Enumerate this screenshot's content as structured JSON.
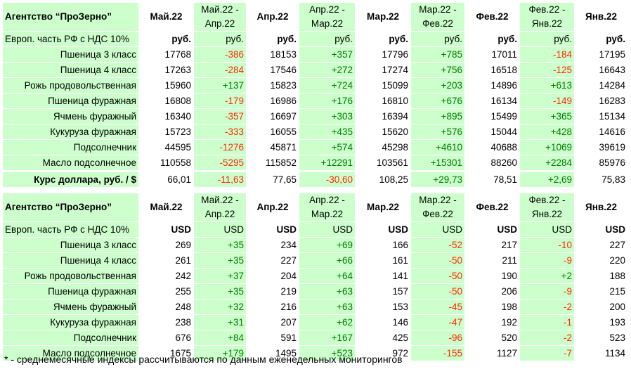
{
  "rub_table": {
    "title": "Агентство “ПроЗерно”",
    "subtitle": "Европ. часть РФ с НДС 10%",
    "headers": [
      "Май.22",
      "Май.22 -\nАпр.22",
      "Апр.22",
      "Апр.22 -\nМар.22",
      "Мар.22",
      "Мар.22 -\nФев.22",
      "Фев.22",
      "Фев.22 -\nЯнв.22",
      "Янв.22"
    ],
    "units": [
      "руб.",
      "руб.",
      "руб.",
      "руб.",
      "руб.",
      "руб.",
      "руб.",
      "руб.",
      "руб."
    ],
    "rows": [
      {
        "name": "Пшеница 3 класс",
        "values": [
          "17768",
          "-386",
          "18153",
          "+357",
          "17796",
          "+785",
          "17011",
          "-184",
          "17195"
        ]
      },
      {
        "name": "Пшеница 4 класс",
        "values": [
          "17263",
          "-284",
          "17546",
          "+272",
          "17274",
          "+756",
          "16518",
          "-125",
          "16643"
        ]
      },
      {
        "name": "Рожь продовольственная",
        "values": [
          "15960",
          "+137",
          "15823",
          "+724",
          "15099",
          "+203",
          "14896",
          "+613",
          "14284"
        ]
      },
      {
        "name": "Пшеница фуражная",
        "values": [
          "16808",
          "-179",
          "16986",
          "+176",
          "16810",
          "+676",
          "16134",
          "-149",
          "16283"
        ]
      },
      {
        "name": "Ячмень фуражный",
        "values": [
          "16340",
          "-357",
          "16697",
          "+303",
          "16394",
          "+895",
          "15499",
          "+365",
          "15134"
        ]
      },
      {
        "name": "Кукуруза фуражная",
        "values": [
          "15723",
          "-333",
          "16055",
          "+435",
          "15620",
          "+576",
          "15044",
          "+428",
          "14616"
        ]
      },
      {
        "name": "Подсолнечник",
        "values": [
          "44595",
          "-1276",
          "45871",
          "+574",
          "45298",
          "+4610",
          "40688",
          "+1069",
          "39619"
        ]
      },
      {
        "name": "Масло подсолнечное",
        "values": [
          "110558",
          "-5295",
          "115852",
          "+12291",
          "103561",
          "+15301",
          "88260",
          "+2284",
          "85976"
        ]
      }
    ]
  },
  "rate_row": {
    "label": "Курс доллара, руб. / $",
    "values": [
      "66,01",
      "-11,63",
      "77,65",
      "-30,60",
      "108,25",
      "+29,73",
      "78,51",
      "+2,69",
      "75,83"
    ]
  },
  "usd_table": {
    "title": "Агентство “ПроЗерно”",
    "subtitle": "Европ. часть РФ с НДС 10%",
    "headers": [
      "Май.22",
      "Май.22 -\nАпр.22",
      "Апр.22",
      "Апр.22 -\nМар.22",
      "Мар.22",
      "Мар.22 -\nФев.22",
      "Фев.22",
      "Фев.22 -\nЯнв.22",
      "Янв.22"
    ],
    "units": [
      "USD",
      "USD",
      "USD",
      "USD",
      "USD",
      "USD",
      "USD",
      "USD",
      "USD"
    ],
    "rows": [
      {
        "name": "Пшеница 3 класс",
        "values": [
          "269",
          "+35",
          "234",
          "+69",
          "166",
          "-52",
          "217",
          "-10",
          "227"
        ]
      },
      {
        "name": "Пшеница 4 класс",
        "values": [
          "261",
          "+35",
          "227",
          "+66",
          "161",
          "-50",
          "211",
          "-9",
          "220"
        ]
      },
      {
        "name": "Рожь продовольственная",
        "values": [
          "242",
          "+37",
          "204",
          "+64",
          "141",
          "-50",
          "190",
          "+2",
          "188"
        ]
      },
      {
        "name": "Пшеница фуражная",
        "values": [
          "255",
          "+35",
          "219",
          "+63",
          "157",
          "-50",
          "206",
          "-9",
          "215"
        ]
      },
      {
        "name": "Ячмень фуражный",
        "values": [
          "248",
          "+32",
          "216",
          "+63",
          "153",
          "-45",
          "198",
          "-2",
          "200"
        ]
      },
      {
        "name": "Кукуруза фуражная",
        "values": [
          "238",
          "+31",
          "207",
          "+62",
          "146",
          "-47",
          "192",
          "-1",
          "193"
        ]
      },
      {
        "name": "Подсолнечник",
        "values": [
          "676",
          "+84",
          "591",
          "+167",
          "425",
          "-96",
          "520",
          "-2",
          "523"
        ]
      },
      {
        "name": "Масло подсолнечное",
        "values": [
          "1675",
          "+179",
          "1495",
          "+523",
          "972",
          "-155",
          "1127",
          "-7",
          "1134"
        ]
      }
    ]
  },
  "footnote": "* - среднемесячные индексы рассчитываются по данным еженедельных мониторингов",
  "colors": {
    "diff_background": "#ccffcc",
    "positive": "#007a00",
    "negative": "#ff2600"
  }
}
